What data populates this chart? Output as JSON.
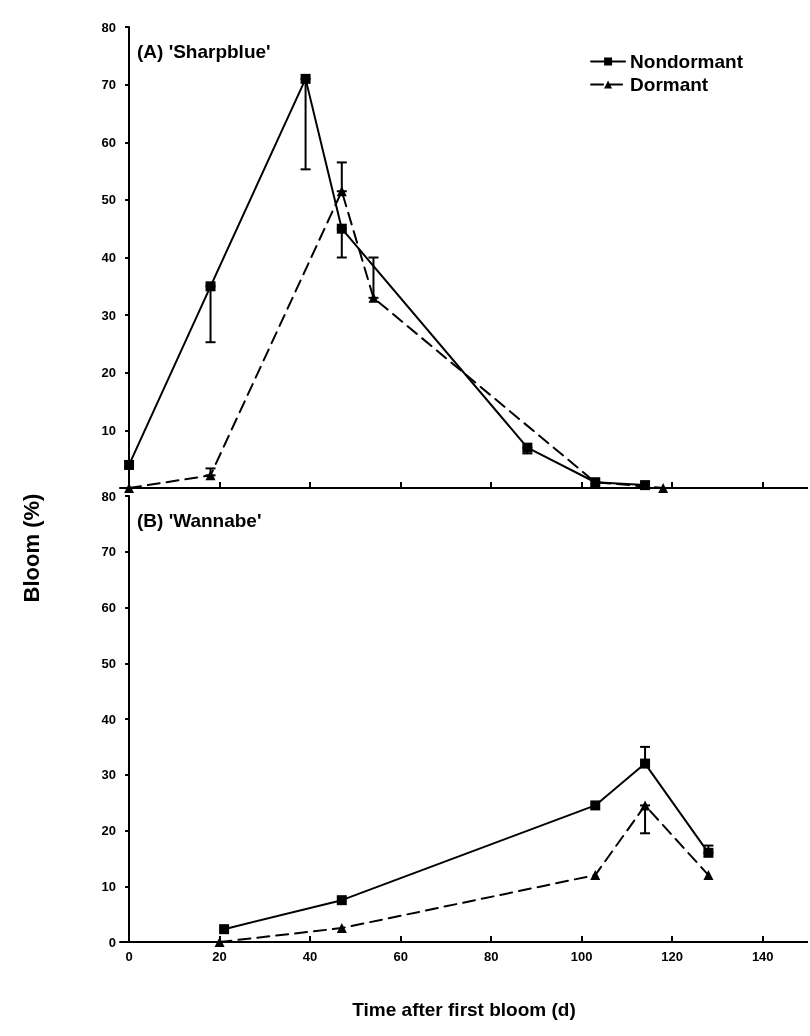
{
  "chart_data": [
    {
      "type": "line",
      "title": "(A) 'Sharpblue'",
      "ylabel": "Bloom (%)",
      "legend": "top right",
      "tick_labels": "y",
      "xlim": [
        -2,
        150
      ],
      "xticks": [
        0,
        20,
        40,
        60,
        80,
        100,
        120,
        140
      ],
      "ylim": [
        0,
        80
      ],
      "yticks": [
        {
          "value": 0,
          "label": null
        },
        10,
        20,
        30,
        40,
        50,
        60,
        70,
        80
      ],
      "series": [
        {
          "name": "Nondormant",
          "color": "#000000",
          "marker": "square",
          "line_style": "solid",
          "x": [
            0,
            18,
            39,
            47,
            88,
            103,
            114
          ],
          "values": [
            4,
            35,
            71,
            45,
            7,
            1,
            0.5
          ],
          "errors": [
            null,
            [
              25.3,
              35
            ],
            [
              55.3,
              71
            ],
            [
              40,
              45
            ],
            [
              6,
              7
            ],
            null,
            null
          ]
        },
        {
          "name": "Dormant",
          "color": "#000000",
          "marker": "triangle",
          "line_style": "dashed",
          "x": [
            0,
            18,
            47,
            54,
            103,
            118
          ],
          "values": [
            0,
            2.2,
            51.5,
            33,
            1,
            0
          ],
          "errors": [
            null,
            [
              2.2,
              3.4
            ],
            [
              51.5,
              56.5
            ],
            [
              33,
              40
            ],
            null,
            null
          ]
        }
      ]
    },
    {
      "type": "line",
      "title": "(B) 'Wannabe'",
      "xlabel": "Time after first bloom (d)",
      "xlim": [
        -2,
        150
      ],
      "xticks": [
        0,
        20,
        40,
        60,
        80,
        100,
        120,
        140
      ],
      "ylim": [
        0,
        80
      ],
      "yticks": [
        0,
        10,
        20,
        30,
        40,
        50,
        60,
        70,
        80
      ],
      "series": [
        {
          "color": "#000000",
          "marker": "square",
          "line_style": "solid",
          "x": [
            21,
            47,
            103,
            114,
            128
          ],
          "values": [
            2.3,
            7.5,
            24.5,
            32,
            16
          ],
          "errors": [
            null,
            null,
            null,
            [
              32,
              35
            ],
            [
              16,
              17.3
            ]
          ]
        },
        {
          "color": "#000000",
          "marker": "triangle",
          "line_style": "dashed",
          "x": [
            20,
            47,
            103,
            114,
            128
          ],
          "values": [
            0,
            2.5,
            12,
            24.5,
            12
          ],
          "errors": [
            null,
            null,
            null,
            [
              19.5,
              24.5
            ],
            null
          ]
        }
      ]
    }
  ]
}
